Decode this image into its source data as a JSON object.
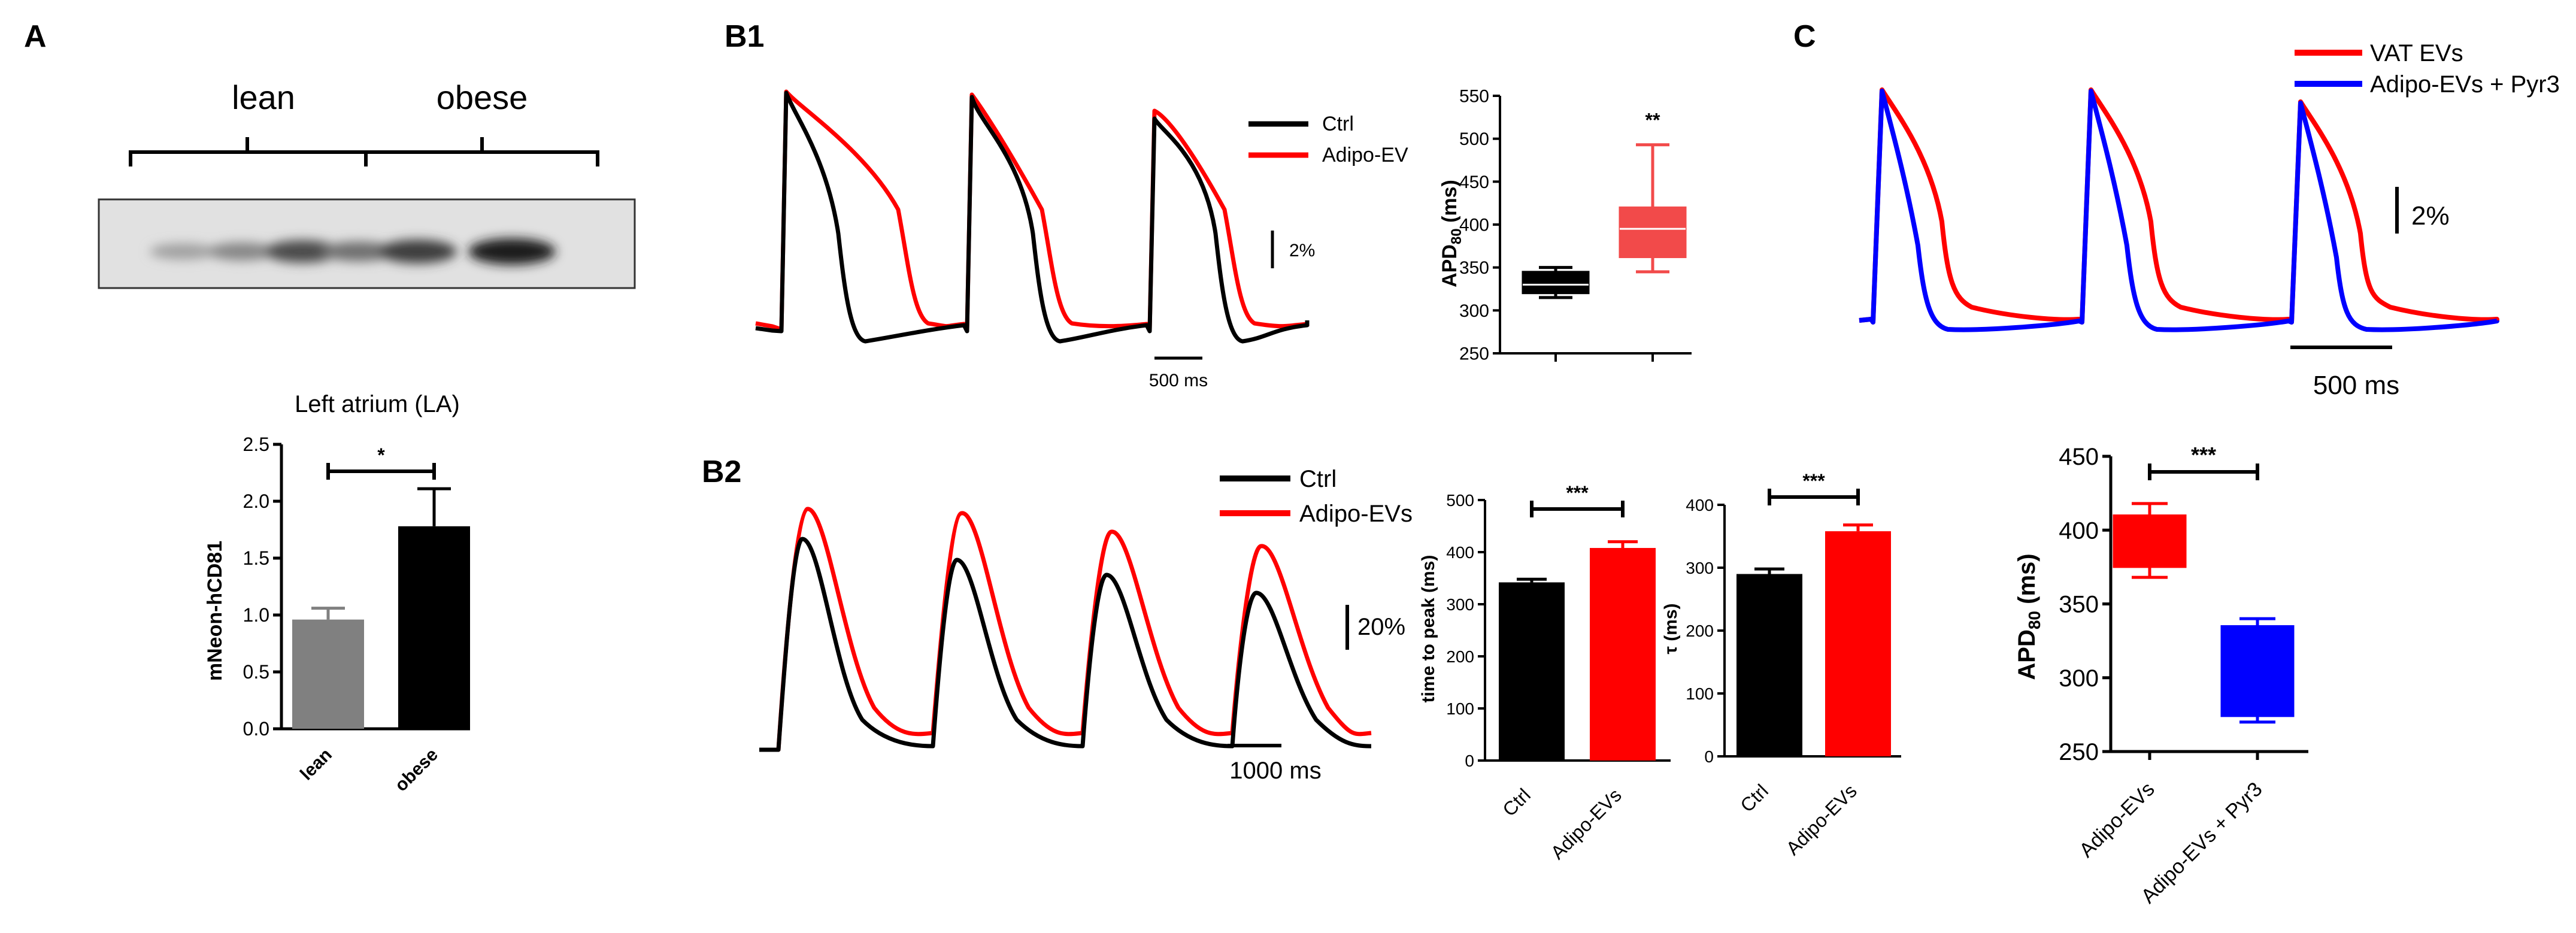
{
  "colors": {
    "ctrl": "#000000",
    "treat": "#ff0000",
    "treat_light": "#f24a4a",
    "pyr": "#0000ff",
    "lean": "#808080",
    "blot_bg": "#e1e1e1"
  },
  "panels": {
    "A": {
      "label": "A",
      "blot": {
        "group_labels": [
          "lean",
          "obese"
        ],
        "band_intensities": [
          0.28,
          0.42,
          0.75,
          0.55,
          0.82,
          1.0
        ]
      },
      "chart": {
        "type": "bar",
        "title": "Left atrium (LA)",
        "ylabel": "mNeon-hCD81",
        "categories": [
          "lean",
          "obese"
        ],
        "values": [
          0.96,
          1.78
        ],
        "errors": [
          0.1,
          0.33
        ],
        "ylim": [
          0,
          2.5
        ],
        "yticks": [
          "0.0",
          "0.5",
          "1.0",
          "1.5",
          "2.0",
          "2.5"
        ],
        "significance": "*"
      }
    },
    "B1": {
      "label": "B1",
      "legend": [
        "Ctrl",
        "Adipo-EV"
      ],
      "scale_y": "2%",
      "scale_x": "500 ms",
      "box": {
        "type": "box",
        "ylabel_main": "APD",
        "ylabel_sub": "80",
        "ylabel_unit": "(ms)",
        "ylim": [
          250,
          550
        ],
        "yticks": [
          "250",
          "300",
          "350",
          "400",
          "450",
          "500",
          "550"
        ],
        "groups": [
          {
            "name": "Ctrl",
            "min": 315,
            "q1": 320,
            "median": 330,
            "q3": 345,
            "max": 350
          },
          {
            "name": "Adipo-EV",
            "min": 345,
            "q1": 362,
            "median": 395,
            "q3": 420,
            "max": 493
          }
        ],
        "significance": "**"
      }
    },
    "B2": {
      "label": "B2",
      "legend": [
        "Ctrl",
        "Adipo-EVs"
      ],
      "scale_y": "20%",
      "scale_x": "1000 ms",
      "bar1": {
        "type": "bar",
        "ylabel": "time to peak  (ms)",
        "categories": [
          "Ctrl",
          "Adipo-EVs"
        ],
        "values": [
          342,
          408
        ],
        "errors": [
          6,
          12
        ],
        "ylim": [
          0,
          500
        ],
        "yticks": [
          "0",
          "100",
          "200",
          "300",
          "400",
          "500"
        ],
        "significance": "***"
      },
      "bar2": {
        "type": "bar",
        "ylabel": "τ (ms)",
        "categories": [
          "Ctrl",
          "Adipo-EVs"
        ],
        "values": [
          290,
          358
        ],
        "errors": [
          8,
          10
        ],
        "ylim": [
          0,
          400
        ],
        "yticks": [
          "0",
          "100",
          "200",
          "300",
          "400"
        ],
        "significance": "***"
      }
    },
    "C": {
      "label": "C",
      "legend": [
        "VAT EVs",
        "Adipo-EVs + Pyr3"
      ],
      "scale_y": "2%",
      "scale_x": "500 ms",
      "box": {
        "type": "box",
        "ylabel_main": "APD",
        "ylabel_sub": "80",
        "ylabel_unit": "(ms)",
        "ylim": [
          250,
          450
        ],
        "yticks": [
          "250",
          "300",
          "350",
          "400",
          "450"
        ],
        "groups": [
          {
            "name": "Adipo-EVs",
            "min": 368,
            "q1": 375,
            "median": 390,
            "q3": 410,
            "max": 418
          },
          {
            "name": "Adipo-EVs + Pyr3",
            "min": 270,
            "q1": 274,
            "median": 300,
            "q3": 335,
            "max": 340
          }
        ],
        "significance": "***"
      }
    }
  }
}
